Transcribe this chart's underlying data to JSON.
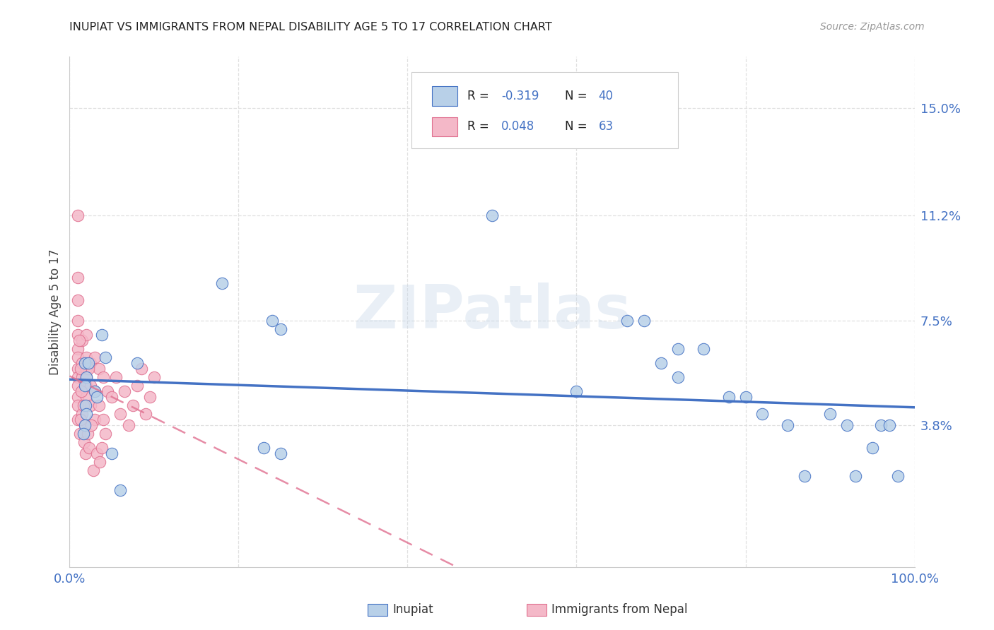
{
  "title": "INUPIAT VS IMMIGRANTS FROM NEPAL DISABILITY AGE 5 TO 17 CORRELATION CHART",
  "source": "Source: ZipAtlas.com",
  "ylabel": "Disability Age 5 to 17",
  "ytick_labels": [
    "3.8%",
    "7.5%",
    "11.2%",
    "15.0%"
  ],
  "ytick_values": [
    0.038,
    0.075,
    0.112,
    0.15
  ],
  "xtick_values": [
    0.0,
    0.2,
    0.4,
    0.6,
    0.8,
    1.0
  ],
  "xtick_labels": [
    "0.0%",
    "",
    "",
    "",
    "",
    "100.0%"
  ],
  "xlim": [
    0.0,
    1.0
  ],
  "ylim": [
    -0.012,
    0.168
  ],
  "legend_r1": "-0.319",
  "legend_n1": "40",
  "legend_r2": "0.048",
  "legend_n2": "63",
  "color_inupiat_fill": "#b8d0e8",
  "color_inupiat_edge": "#4472c4",
  "color_nepal_fill": "#f4b8c8",
  "color_nepal_edge": "#e07090",
  "color_trend_inupiat": "#4472c4",
  "color_trend_nepal": "#e07090",
  "color_axis_values": "#4472c4",
  "color_title": "#222222",
  "color_source": "#999999",
  "color_grid": "#e0e0e0",
  "color_label": "#444444",
  "watermark": "ZIPatlas",
  "legend_label1": "Inupiat",
  "legend_label2": "Immigrants from Nepal",
  "inupiat_x": [
    0.018,
    0.038,
    0.18,
    0.24,
    0.25,
    0.022,
    0.02,
    0.018,
    0.03,
    0.032,
    0.042,
    0.019,
    0.02,
    0.018,
    0.016,
    0.5,
    0.66,
    0.68,
    0.7,
    0.72,
    0.75,
    0.78,
    0.8,
    0.82,
    0.85,
    0.87,
    0.9,
    0.92,
    0.93,
    0.95,
    0.96,
    0.97,
    0.98,
    0.72,
    0.6,
    0.23,
    0.25,
    0.05,
    0.06,
    0.08
  ],
  "inupiat_y": [
    0.06,
    0.07,
    0.088,
    0.075,
    0.072,
    0.06,
    0.055,
    0.052,
    0.05,
    0.048,
    0.062,
    0.045,
    0.042,
    0.038,
    0.035,
    0.112,
    0.075,
    0.075,
    0.06,
    0.055,
    0.065,
    0.048,
    0.048,
    0.042,
    0.038,
    0.02,
    0.042,
    0.038,
    0.02,
    0.03,
    0.038,
    0.038,
    0.02,
    0.065,
    0.05,
    0.03,
    0.028,
    0.028,
    0.015,
    0.06
  ],
  "nepal_x": [
    0.01,
    0.01,
    0.01,
    0.01,
    0.01,
    0.01,
    0.01,
    0.01,
    0.01,
    0.01,
    0.01,
    0.01,
    0.01,
    0.015,
    0.015,
    0.015,
    0.02,
    0.02,
    0.02,
    0.02,
    0.02,
    0.02,
    0.025,
    0.025,
    0.025,
    0.03,
    0.03,
    0.03,
    0.035,
    0.035,
    0.04,
    0.04,
    0.045,
    0.05,
    0.055,
    0.06,
    0.065,
    0.07,
    0.075,
    0.08,
    0.085,
    0.09,
    0.095,
    0.1,
    0.015,
    0.018,
    0.022,
    0.012,
    0.013,
    0.016,
    0.017,
    0.019,
    0.021,
    0.023,
    0.026,
    0.028,
    0.032,
    0.036,
    0.038,
    0.042,
    0.011,
    0.013,
    0.014
  ],
  "nepal_y": [
    0.112,
    0.09,
    0.082,
    0.075,
    0.07,
    0.065,
    0.062,
    0.058,
    0.055,
    0.052,
    0.048,
    0.045,
    0.04,
    0.068,
    0.06,
    0.055,
    0.07,
    0.062,
    0.058,
    0.055,
    0.052,
    0.048,
    0.06,
    0.052,
    0.045,
    0.062,
    0.05,
    0.04,
    0.058,
    0.045,
    0.055,
    0.04,
    0.05,
    0.048,
    0.055,
    0.042,
    0.05,
    0.038,
    0.045,
    0.052,
    0.058,
    0.042,
    0.048,
    0.055,
    0.042,
    0.038,
    0.058,
    0.035,
    0.04,
    0.045,
    0.032,
    0.028,
    0.035,
    0.03,
    0.038,
    0.022,
    0.028,
    0.025,
    0.03,
    0.035,
    0.068,
    0.058,
    0.05
  ]
}
